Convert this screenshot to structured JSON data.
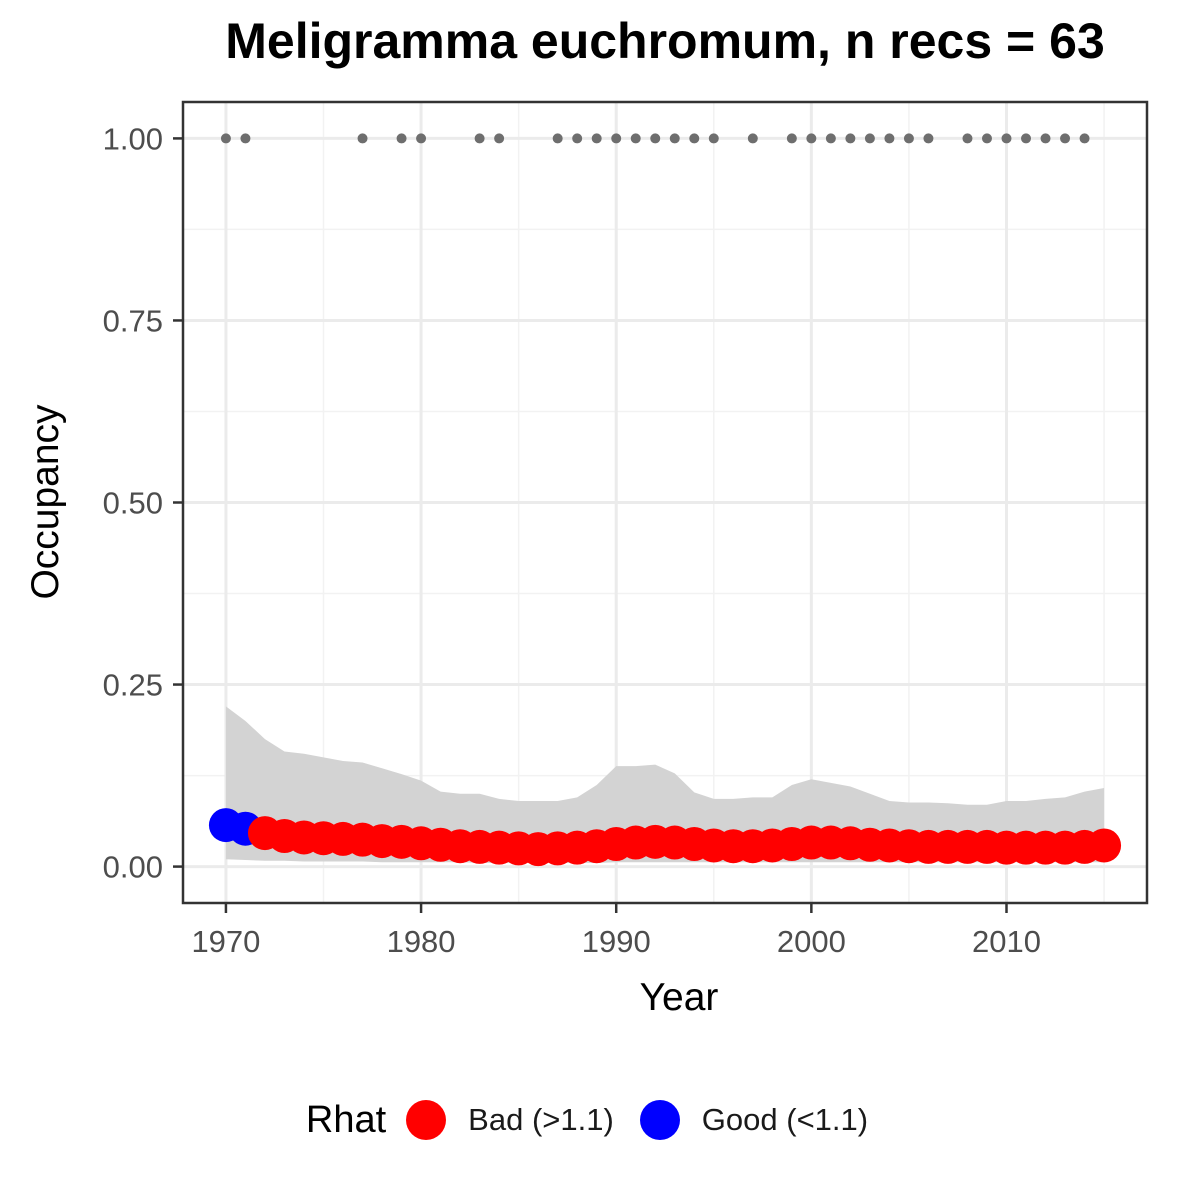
{
  "chart_data": {
    "type": "scatter",
    "title": "Meligramma euchromum, n recs = 63",
    "xlabel": "Year",
    "ylabel": "Occupancy",
    "xlim": [
      1967.8,
      2017.2
    ],
    "ylim": [
      -0.05,
      1.05
    ],
    "x_ticks": [
      1970,
      1980,
      1990,
      2000,
      2010
    ],
    "y_ticks": [
      0.0,
      0.25,
      0.5,
      0.75,
      1.0
    ],
    "x_tick_labels": [
      "1970",
      "1980",
      "1990",
      "2000",
      "2010"
    ],
    "y_tick_labels": [
      "0.00",
      "0.25",
      "0.50",
      "0.75",
      "1.00"
    ],
    "grid": true,
    "legend_position": "bottom",
    "legend": {
      "title": "Rhat",
      "entries": [
        {
          "label": "Bad (>1.1)",
          "color": "#ff0000"
        },
        {
          "label": "Good (<1.1)",
          "color": "#0000ff"
        }
      ]
    },
    "colors": {
      "bad": "#ff0000",
      "good": "#0000ff",
      "ribbon": "#d3d3d3",
      "record_dot": "#6e6e6e"
    },
    "occupancy": {
      "years": [
        1970,
        1971,
        1972,
        1973,
        1974,
        1975,
        1976,
        1977,
        1978,
        1979,
        1980,
        1981,
        1982,
        1983,
        1984,
        1985,
        1986,
        1987,
        1988,
        1989,
        1990,
        1991,
        1992,
        1993,
        1994,
        1995,
        1996,
        1997,
        1998,
        1999,
        2000,
        2001,
        2002,
        2003,
        2004,
        2005,
        2006,
        2007,
        2008,
        2009,
        2010,
        2011,
        2012,
        2013,
        2014,
        2015
      ],
      "mean": [
        0.057,
        0.052,
        0.046,
        0.042,
        0.04,
        0.039,
        0.038,
        0.037,
        0.035,
        0.034,
        0.032,
        0.03,
        0.028,
        0.027,
        0.026,
        0.025,
        0.024,
        0.025,
        0.026,
        0.028,
        0.031,
        0.033,
        0.034,
        0.033,
        0.031,
        0.029,
        0.028,
        0.028,
        0.029,
        0.031,
        0.033,
        0.033,
        0.032,
        0.03,
        0.029,
        0.028,
        0.027,
        0.027,
        0.027,
        0.027,
        0.026,
        0.026,
        0.026,
        0.026,
        0.027,
        0.029
      ],
      "rhat": [
        "good",
        "good",
        "bad",
        "bad",
        "bad",
        "bad",
        "bad",
        "bad",
        "bad",
        "bad",
        "bad",
        "bad",
        "bad",
        "bad",
        "bad",
        "bad",
        "bad",
        "bad",
        "bad",
        "bad",
        "bad",
        "bad",
        "bad",
        "bad",
        "bad",
        "bad",
        "bad",
        "bad",
        "bad",
        "bad",
        "bad",
        "bad",
        "bad",
        "bad",
        "bad",
        "bad",
        "bad",
        "bad",
        "bad",
        "bad",
        "bad",
        "bad",
        "bad",
        "bad",
        "bad",
        "bad"
      ],
      "lower": [
        0.01,
        0.009,
        0.008,
        0.008,
        0.007,
        0.007,
        0.007,
        0.007,
        0.006,
        0.006,
        0.006,
        0.006,
        0.006,
        0.005,
        0.005,
        0.005,
        0.005,
        0.005,
        0.005,
        0.005,
        0.006,
        0.006,
        0.006,
        0.006,
        0.006,
        0.006,
        0.006,
        0.006,
        0.006,
        0.006,
        0.006,
        0.006,
        0.006,
        0.006,
        0.006,
        0.006,
        0.006,
        0.006,
        0.006,
        0.006,
        0.006,
        0.006,
        0.006,
        0.006,
        0.006,
        0.006
      ],
      "upper": [
        0.22,
        0.2,
        0.175,
        0.158,
        0.155,
        0.15,
        0.145,
        0.143,
        0.135,
        0.127,
        0.118,
        0.103,
        0.1,
        0.1,
        0.093,
        0.09,
        0.09,
        0.09,
        0.095,
        0.112,
        0.138,
        0.138,
        0.14,
        0.128,
        0.102,
        0.093,
        0.093,
        0.095,
        0.095,
        0.112,
        0.12,
        0.115,
        0.11,
        0.1,
        0.09,
        0.088,
        0.088,
        0.087,
        0.085,
        0.085,
        0.09,
        0.09,
        0.093,
        0.095,
        0.103,
        0.108
      ]
    },
    "records": {
      "value": 1.0,
      "years": [
        1970,
        1971,
        1977,
        1979,
        1980,
        1983,
        1984,
        1987,
        1988,
        1989,
        1990,
        1991,
        1992,
        1993,
        1994,
        1995,
        1997,
        1999,
        2000,
        2001,
        2002,
        2003,
        2004,
        2005,
        2006,
        2008,
        2009,
        2010,
        2011,
        2012,
        2013,
        2014
      ]
    }
  }
}
